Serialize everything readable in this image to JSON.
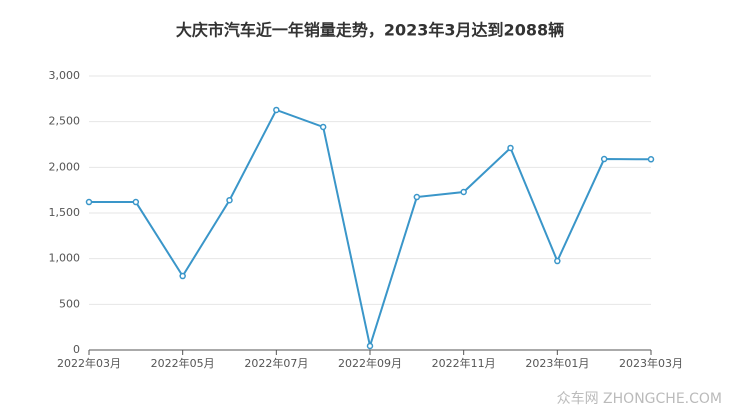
{
  "chart_data": {
    "type": "line",
    "title": "大庆市汽车近一年销量走势，2023年3月达到2088辆",
    "categories": [
      "2022年03月",
      null,
      "2022年05月",
      null,
      "2022年07月",
      null,
      "2022年09月",
      null,
      "2022年11月",
      null,
      "2023年01月",
      null,
      "2023年03月"
    ],
    "series": [
      {
        "name": "销量",
        "color": "#3a96c9",
        "values": [
          1620,
          1620,
          810,
          1640,
          2628,
          2442,
          44,
          1675,
          1730,
          2212,
          974,
          2091,
          2088
        ]
      }
    ],
    "ylim": [
      0,
      3000
    ],
    "yticks": [
      0,
      500,
      {
        "value": 1000,
        "label": "1,000"
      },
      {
        "value": 1500,
        "label": "1,500"
      },
      {
        "value": 2000,
        "label": "2,000"
      },
      {
        "value": 2500,
        "label": "2,500"
      },
      {
        "value": 3000,
        "label": "3,000"
      }
    ],
    "grid": true,
    "watermark": "众车网 ZHONGCHE.COM"
  }
}
